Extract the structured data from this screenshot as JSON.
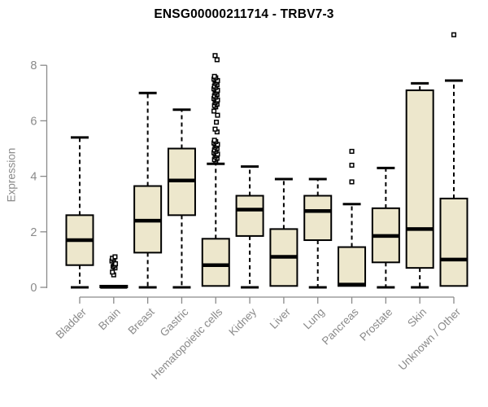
{
  "chart_data": {
    "type": "boxplot",
    "title": "ENSG00000211714 - TRBV7-3",
    "ylabel": "Expression",
    "xlabel": "",
    "ylim": [
      0,
      8
    ],
    "yticks": [
      0,
      2,
      4,
      6,
      8
    ],
    "grid": false,
    "legend_position": "none",
    "colors": {
      "box_fill": "#EDE7CC",
      "box_stroke": "#000000",
      "median": "#000000",
      "whisker": "#000000",
      "axis": "#8A8A8A",
      "tick_labels": "#8A8A8A",
      "title": "#000000",
      "background": "#FFFFFF"
    },
    "categories": [
      "Bladder",
      "Brain",
      "Breast",
      "Gastric",
      "Hematopoietic cells",
      "Kidney",
      "Liver",
      "Lung",
      "Pancreas",
      "Prostate",
      "Skin",
      "Unknown / Other"
    ],
    "boxes": [
      {
        "category": "Bladder",
        "whisker_low": 0,
        "q1": 0.8,
        "median": 1.7,
        "q3": 2.6,
        "whisker_high": 5.4,
        "outliers": []
      },
      {
        "category": "Brain",
        "whisker_low": 0,
        "q1": 0,
        "median": 0.02,
        "q3": 0.06,
        "whisker_high": 0.06,
        "outliers": [
          0.45,
          0.55,
          0.7,
          0.75,
          0.8,
          0.85,
          0.95,
          1.0,
          1.05,
          1.1
        ]
      },
      {
        "category": "Breast",
        "whisker_low": 0,
        "q1": 1.25,
        "median": 2.4,
        "q3": 3.65,
        "whisker_high": 7.0,
        "outliers": []
      },
      {
        "category": "Gastric",
        "whisker_low": 0,
        "q1": 2.6,
        "median": 3.85,
        "q3": 5.0,
        "whisker_high": 6.4,
        "outliers": []
      },
      {
        "category": "Hematopoietic cells",
        "whisker_low": 0.05,
        "q1": 0.05,
        "median": 0.8,
        "q3": 1.75,
        "whisker_high": 4.45,
        "outliers": [
          4.55,
          4.6,
          4.65,
          4.7,
          4.75,
          4.8,
          4.85,
          4.9,
          4.95,
          5.0,
          5.05,
          5.1,
          5.15,
          5.2,
          5.25,
          5.3,
          5.6,
          5.7,
          5.95,
          6.2,
          6.35,
          6.5,
          6.55,
          6.6,
          6.65,
          6.7,
          6.75,
          6.8,
          6.85,
          6.9,
          6.95,
          7.0,
          7.05,
          7.1,
          7.15,
          7.2,
          7.25,
          7.3,
          7.35,
          7.4,
          7.45,
          7.5,
          7.55,
          7.6,
          8.2,
          8.35
        ]
      },
      {
        "category": "Kidney",
        "whisker_low": 0,
        "q1": 1.85,
        "median": 2.8,
        "q3": 3.3,
        "whisker_high": 4.35,
        "outliers": []
      },
      {
        "category": "Liver",
        "whisker_low": 0.05,
        "q1": 0.05,
        "median": 1.1,
        "q3": 2.1,
        "whisker_high": 3.9,
        "outliers": []
      },
      {
        "category": "Lung",
        "whisker_low": 0,
        "q1": 1.7,
        "median": 2.75,
        "q3": 3.3,
        "whisker_high": 3.9,
        "outliers": []
      },
      {
        "category": "Pancreas",
        "whisker_low": 0.05,
        "q1": 0.05,
        "median": 0.1,
        "q3": 1.45,
        "whisker_high": 3.0,
        "outliers": [
          3.8,
          4.4,
          4.9
        ]
      },
      {
        "category": "Prostate",
        "whisker_low": 0,
        "q1": 0.9,
        "median": 1.85,
        "q3": 2.85,
        "whisker_high": 4.3,
        "outliers": []
      },
      {
        "category": "Skin",
        "whisker_low": 0,
        "q1": 0.7,
        "median": 2.1,
        "q3": 7.1,
        "whisker_high": 7.35,
        "outliers": []
      },
      {
        "category": "Unknown / Other",
        "whisker_low": 0.05,
        "q1": 0.05,
        "median": 1.0,
        "q3": 3.2,
        "whisker_high": 7.45,
        "outliers": [
          9.1
        ]
      }
    ]
  }
}
